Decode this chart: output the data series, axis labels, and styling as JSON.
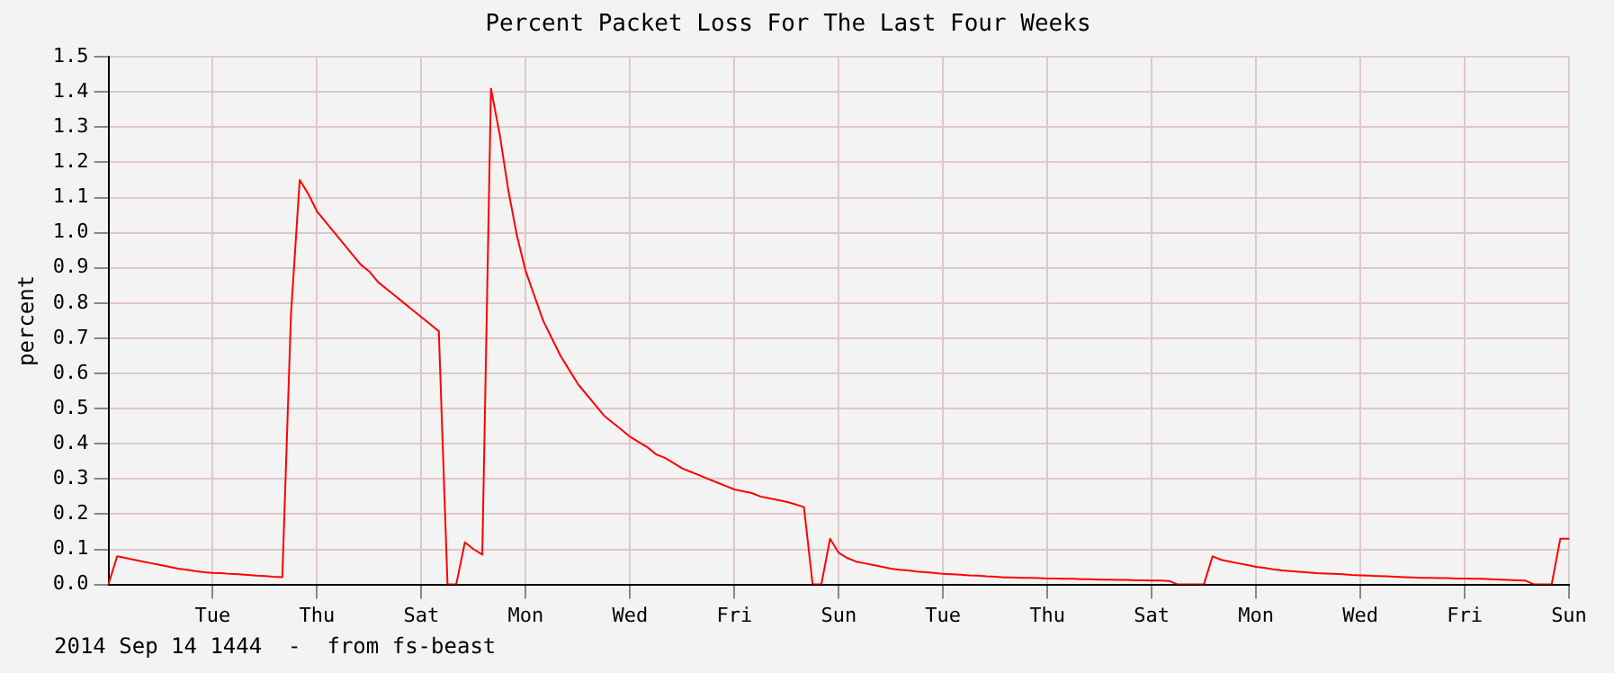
{
  "chart_data": {
    "type": "line",
    "title": "Percent Packet Loss For The Last Four Weeks",
    "ylabel": "percent",
    "annotations": [
      "2014 Sep 14 1444  -  from fs-beast"
    ],
    "categories": [
      null,
      null,
      null,
      null,
      null,
      null,
      null,
      null,
      null,
      null,
      null,
      null,
      "Tue",
      null,
      null,
      null,
      null,
      null,
      null,
      null,
      null,
      null,
      null,
      null,
      "Thu",
      null,
      null,
      null,
      null,
      null,
      null,
      null,
      null,
      null,
      null,
      null,
      "Sat",
      null,
      null,
      null,
      null,
      null,
      null,
      null,
      null,
      null,
      null,
      null,
      "Mon",
      null,
      null,
      null,
      null,
      null,
      null,
      null,
      null,
      null,
      null,
      null,
      "Wed",
      null,
      null,
      null,
      null,
      null,
      null,
      null,
      null,
      null,
      null,
      null,
      "Fri",
      null,
      null,
      null,
      null,
      null,
      null,
      null,
      null,
      null,
      null,
      null,
      "Sun",
      null,
      null,
      null,
      null,
      null,
      null,
      null,
      null,
      null,
      null,
      null,
      "Tue",
      null,
      null,
      null,
      null,
      null,
      null,
      null,
      null,
      null,
      null,
      null,
      "Thu",
      null,
      null,
      null,
      null,
      null,
      null,
      null,
      null,
      null,
      null,
      null,
      "Sat",
      null,
      null,
      null,
      null,
      null,
      null,
      null,
      null,
      null,
      null,
      null,
      "Mon",
      null,
      null,
      null,
      null,
      null,
      null,
      null,
      null,
      null,
      null,
      null,
      "Wed",
      null,
      null,
      null,
      null,
      null,
      null,
      null,
      null,
      null,
      null,
      null,
      "Fri",
      null,
      null,
      null,
      null,
      null,
      null,
      null,
      null,
      null,
      null,
      null,
      "Sun"
    ],
    "series": [
      {
        "color": "#ff0000",
        "values": [
          0,
          0.08,
          0.075,
          0.07,
          0.065,
          0.06,
          0.055,
          0.05,
          0.045,
          0.042,
          0.038,
          0.035,
          0.033,
          0.032,
          0.03,
          0.029,
          0.027,
          0.025,
          0.024,
          0.022,
          0.021,
          0.77,
          1.15,
          1.11,
          1.06,
          1.03,
          1.0,
          0.97,
          0.94,
          0.91,
          0.89,
          0.86,
          0.84,
          0.82,
          0.8,
          0.78,
          0.76,
          0.74,
          0.72,
          0,
          0,
          0.12,
          0.1,
          0.085,
          1.41,
          1.28,
          1.12,
          0.99,
          0.89,
          0.82,
          0.75,
          0.7,
          0.65,
          0.61,
          0.57,
          0.54,
          0.51,
          0.48,
          0.46,
          0.44,
          0.42,
          0.405,
          0.39,
          0.37,
          0.36,
          0.345,
          0.33,
          0.32,
          0.31,
          0.3,
          0.29,
          0.28,
          0.27,
          0.265,
          0.26,
          0.25,
          0.245,
          0.24,
          0.235,
          0.228,
          0.22,
          0,
          0,
          0.13,
          0.09,
          0.075,
          0.065,
          0.06,
          0.055,
          0.05,
          0.045,
          0.042,
          0.04,
          0.037,
          0.035,
          0.033,
          0.03,
          0.029,
          0.028,
          0.026,
          0.025,
          0.023,
          0.022,
          0.02,
          0.02,
          0.019,
          0.019,
          0.018,
          0.017,
          0.017,
          0.016,
          0.016,
          0.015,
          0.015,
          0.014,
          0.014,
          0.013,
          0.013,
          0.012,
          0.012,
          0.011,
          0.011,
          0.01,
          0,
          0,
          0,
          0,
          0.08,
          0.07,
          0.065,
          0.06,
          0.055,
          0.05,
          0.047,
          0.043,
          0.04,
          0.038,
          0.036,
          0.034,
          0.032,
          0.031,
          0.03,
          0.029,
          0.027,
          0.026,
          0.025,
          0.024,
          0.023,
          0.022,
          0.021,
          0.02,
          0.019,
          0.019,
          0.018,
          0.018,
          0.017,
          0.017,
          0.016,
          0.016,
          0.015,
          0.014,
          0.013,
          0.012,
          0.011,
          0,
          0,
          0,
          0.13,
          0.13
        ]
      }
    ],
    "ylim": [
      0,
      1.5
    ],
    "yticks": [
      {
        "value": 0,
        "label": "0.0"
      },
      {
        "value": 0.1,
        "label": "0.1"
      },
      {
        "value": 0.2,
        "label": "0.2"
      },
      {
        "value": 0.3,
        "label": "0.3"
      },
      {
        "value": 0.4,
        "label": "0.4"
      },
      {
        "value": 0.5,
        "label": "0.5"
      },
      {
        "value": 0.6,
        "label": "0.6"
      },
      {
        "value": 0.7,
        "label": "0.7"
      },
      {
        "value": 0.8,
        "label": "0.8"
      },
      {
        "value": 0.9,
        "label": "0.9"
      },
      {
        "value": 1,
        "label": "1.0"
      },
      {
        "value": 1.1,
        "label": "1.1"
      },
      {
        "value": 1.2,
        "label": "1.2"
      },
      {
        "value": 1.3,
        "label": "1.3"
      },
      {
        "value": 1.4,
        "label": "1.4"
      },
      {
        "value": 1.5,
        "label": "1.5"
      }
    ],
    "grid": true,
    "legend": false,
    "marker": "none",
    "line_style": "solid"
  }
}
